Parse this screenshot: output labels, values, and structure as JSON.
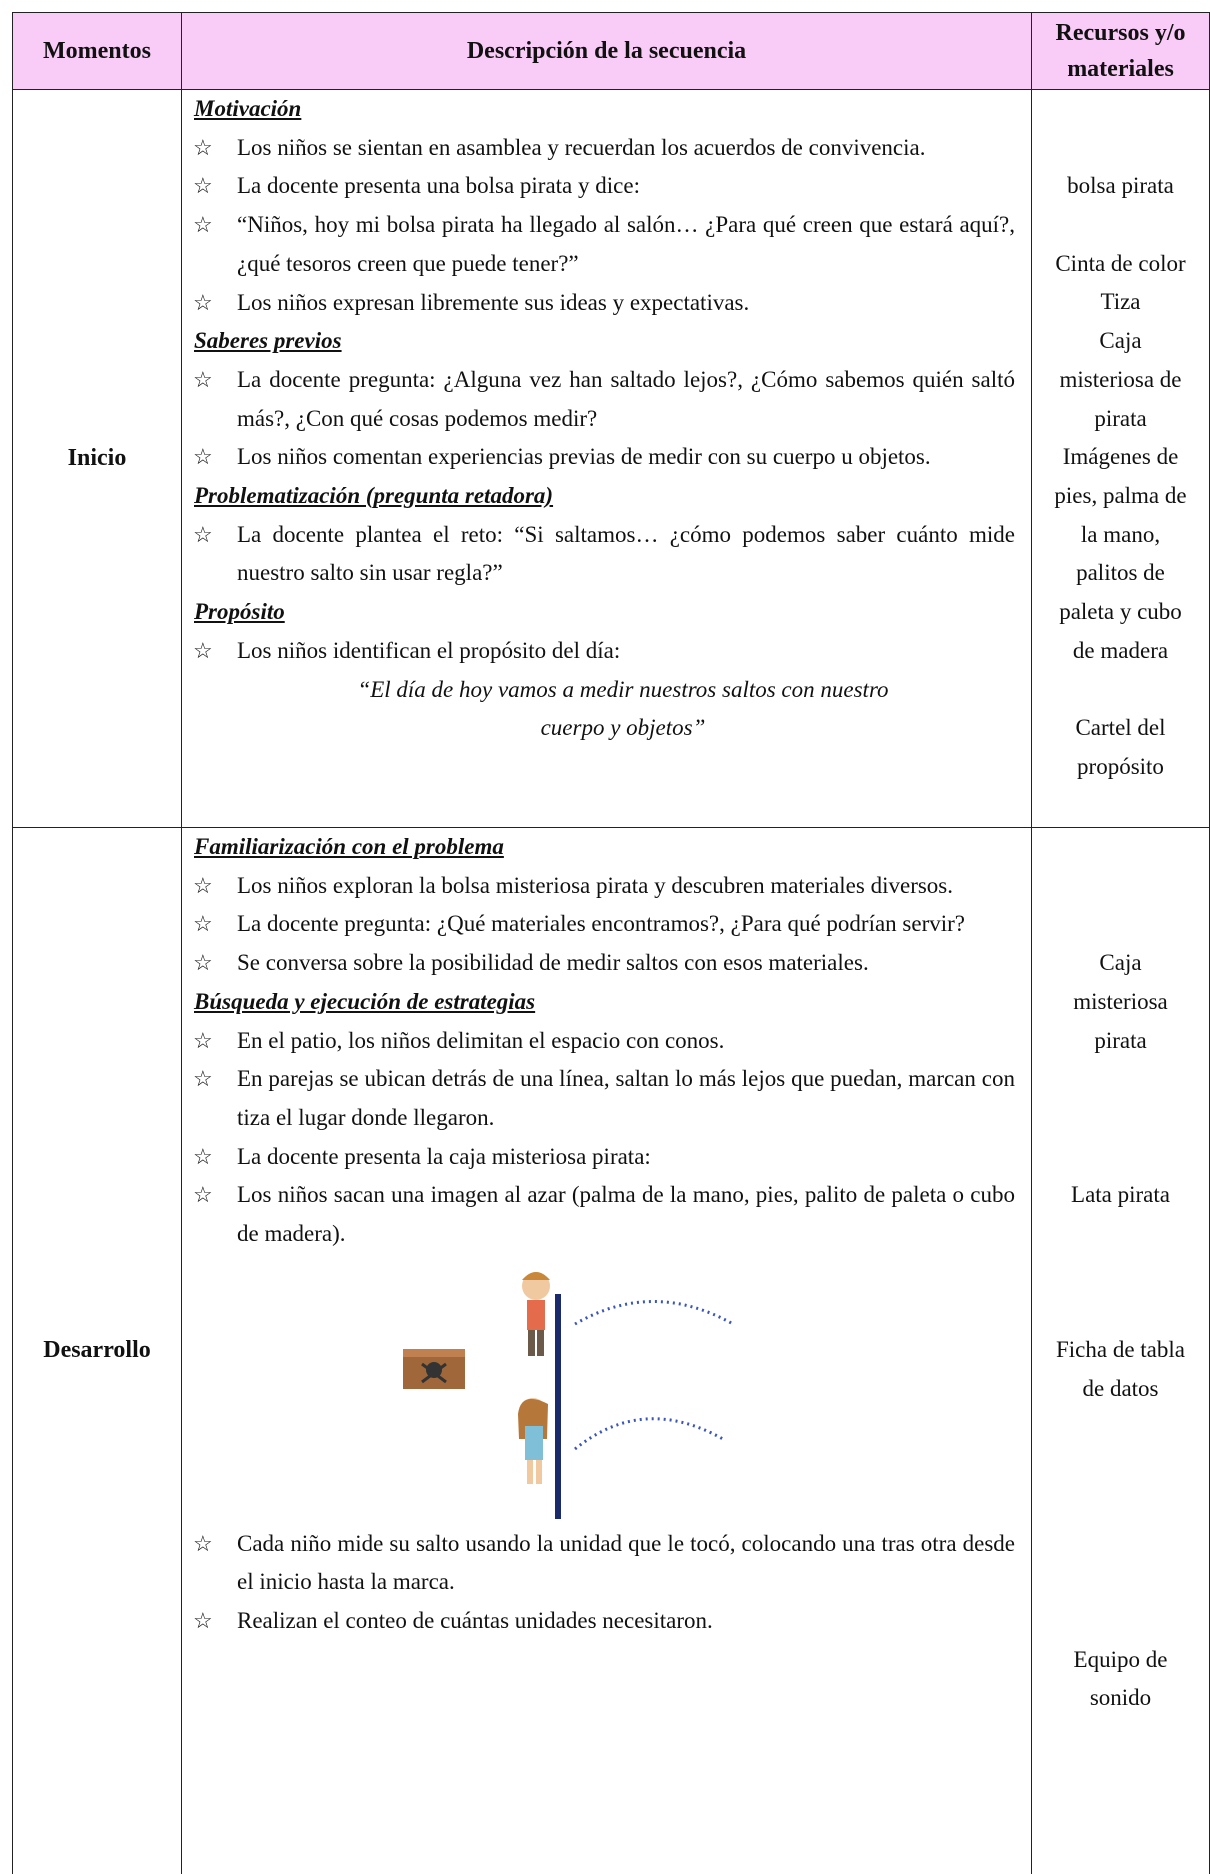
{
  "table": {
    "header": [
      "Momentos",
      "Descripción de la secuencia",
      "Recursos y/o materiales"
    ],
    "rows": [
      {
        "moment": "Inicio",
        "sections": [
          {
            "heading": "Motivación",
            "items": [
              "Los niños se sientan en asamblea y recuerdan los acuerdos de convivencia.",
              "La docente presenta una bolsa pirata y dice:",
              "“Niños, hoy mi bolsa pirata ha llegado al salón… ¿Para qué creen que estará aquí?, ¿qué tesoros creen que puede tener?”",
              "Los niños expresan libremente sus ideas y expectativas."
            ]
          },
          {
            "heading": "Saberes previos",
            "items": [
              "La docente pregunta: ¿Alguna vez han saltado lejos?, ¿Cómo sabemos quién saltó más?, ¿Con qué cosas podemos medir?",
              "Los niños comentan experiencias previas de medir con su cuerpo u objetos."
            ]
          },
          {
            "heading": "Problematización (pregunta retadora)",
            "items": [
              "La docente plantea el reto: “Si saltamos… ¿cómo podemos saber cuánto mide nuestro salto sin usar regla?”"
            ]
          },
          {
            "heading": "Propósito",
            "items": [
              "Los niños identifican el propósito del día:"
            ],
            "quote": "“El día de hoy vamos a medir nuestros saltos con nuestro cuerpo y objetos”"
          }
        ],
        "resources": [
          "bolsa pirata",
          "Cinta de color",
          "Tiza",
          "Caja misteriosa de pirata",
          "Imágenes de pies, palma de la mano, palitos de paleta y cubo de madera",
          "Cartel del propósito"
        ]
      },
      {
        "moment": "Desarrollo",
        "sections": [
          {
            "heading": "Familiarización con el problema",
            "items": [
              "Los niños exploran la bolsa misteriosa pirata y descubren materiales diversos.",
              "La docente pregunta: ¿Qué materiales encontramos?,  ¿Para qué podrían servir?",
              "Se conversa sobre la posibilidad de medir saltos con esos materiales."
            ]
          },
          {
            "heading": "Búsqueda y ejecución de estrategias",
            "items": [
              "En el patio, los niños delimitan el espacio con conos.",
              "En parejas se ubican detrás de una línea, saltan lo más lejos que puedan, marcan con tiza el lugar donde llegaron.",
              "La docente presenta la caja misteriosa pirata:",
              "Los niños sacan una imagen al azar (palma de la mano, pies, palito de paleta o cubo de madera).",
              "Cada niño mide su salto usando la unidad que le tocó, colocando una tras otra desde el inicio hasta la marca.",
              "Realizan el conteo de cuántas unidades necesitaron."
            ]
          }
        ],
        "resources": [
          "Caja misteriosa pirata",
          "Lata pirata",
          "Ficha de tabla de datos",
          "Equipo de sonido"
        ]
      }
    ]
  }
}
